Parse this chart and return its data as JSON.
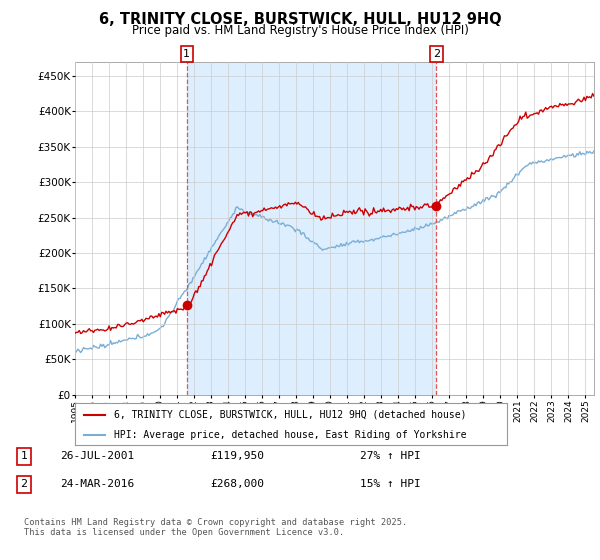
{
  "title": "6, TRINITY CLOSE, BURSTWICK, HULL, HU12 9HQ",
  "subtitle": "Price paid vs. HM Land Registry's House Price Index (HPI)",
  "sale1_date": "26-JUL-2001",
  "sale1_price": 119950,
  "sale1_hpi_pct": "27% ↑ HPI",
  "sale2_date": "24-MAR-2016",
  "sale2_price": 268000,
  "sale2_hpi_pct": "15% ↑ HPI",
  "sale1_year": 2001.57,
  "sale2_year": 2016.23,
  "ylim_min": 0,
  "ylim_max": 470000,
  "yticks": [
    0,
    50000,
    100000,
    150000,
    200000,
    250000,
    300000,
    350000,
    400000,
    450000
  ],
  "legend1": "6, TRINITY CLOSE, BURSTWICK, HULL, HU12 9HQ (detached house)",
  "legend2": "HPI: Average price, detached house, East Riding of Yorkshire",
  "footer": "Contains HM Land Registry data © Crown copyright and database right 2025.\nThis data is licensed under the Open Government Licence v3.0.",
  "line_color_red": "#cc0000",
  "line_color_blue": "#7aaed6",
  "fill_color": "#ddeeff",
  "vline_color": "#dd4444",
  "grid_color": "#cccccc",
  "background_color": "#ffffff"
}
